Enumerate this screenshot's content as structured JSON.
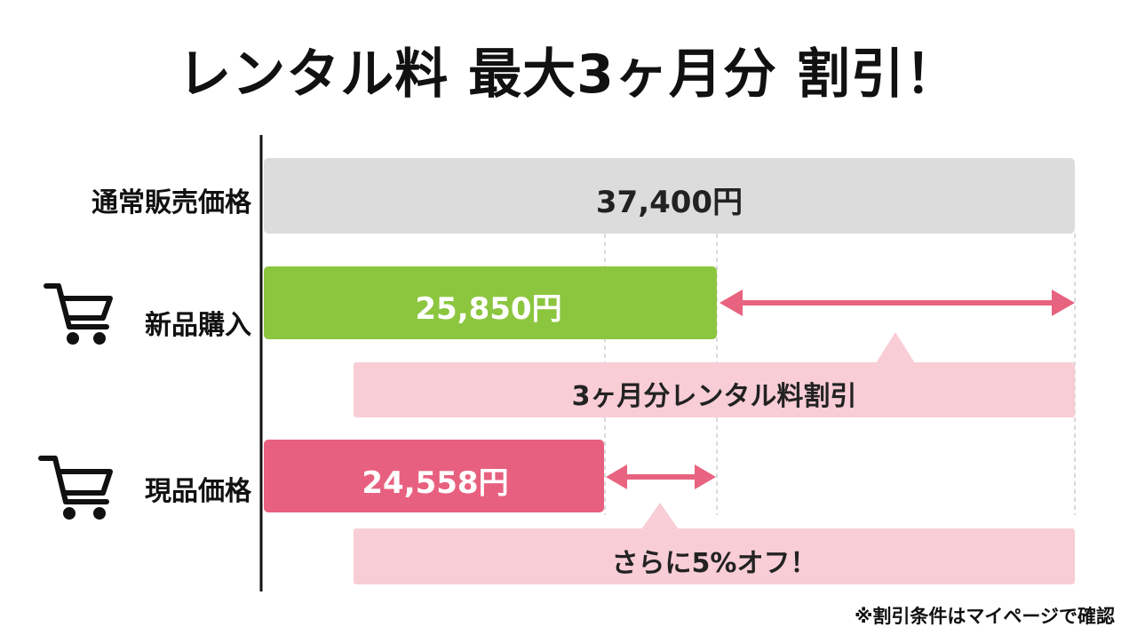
{
  "title": "レンタル料 最大3ヶ月分 割引！",
  "rows": [
    {
      "label": "通常販売価格",
      "price": "37,400円"
    },
    {
      "label": "新品購入",
      "price": "25,850円"
    },
    {
      "label": "現品価格",
      "price": "24,558円"
    }
  ],
  "callouts": [
    "3ヶ月分レンタル料割引",
    "さらに5%オフ！"
  ],
  "footnote": "※割引条件はマイページで確認"
}
